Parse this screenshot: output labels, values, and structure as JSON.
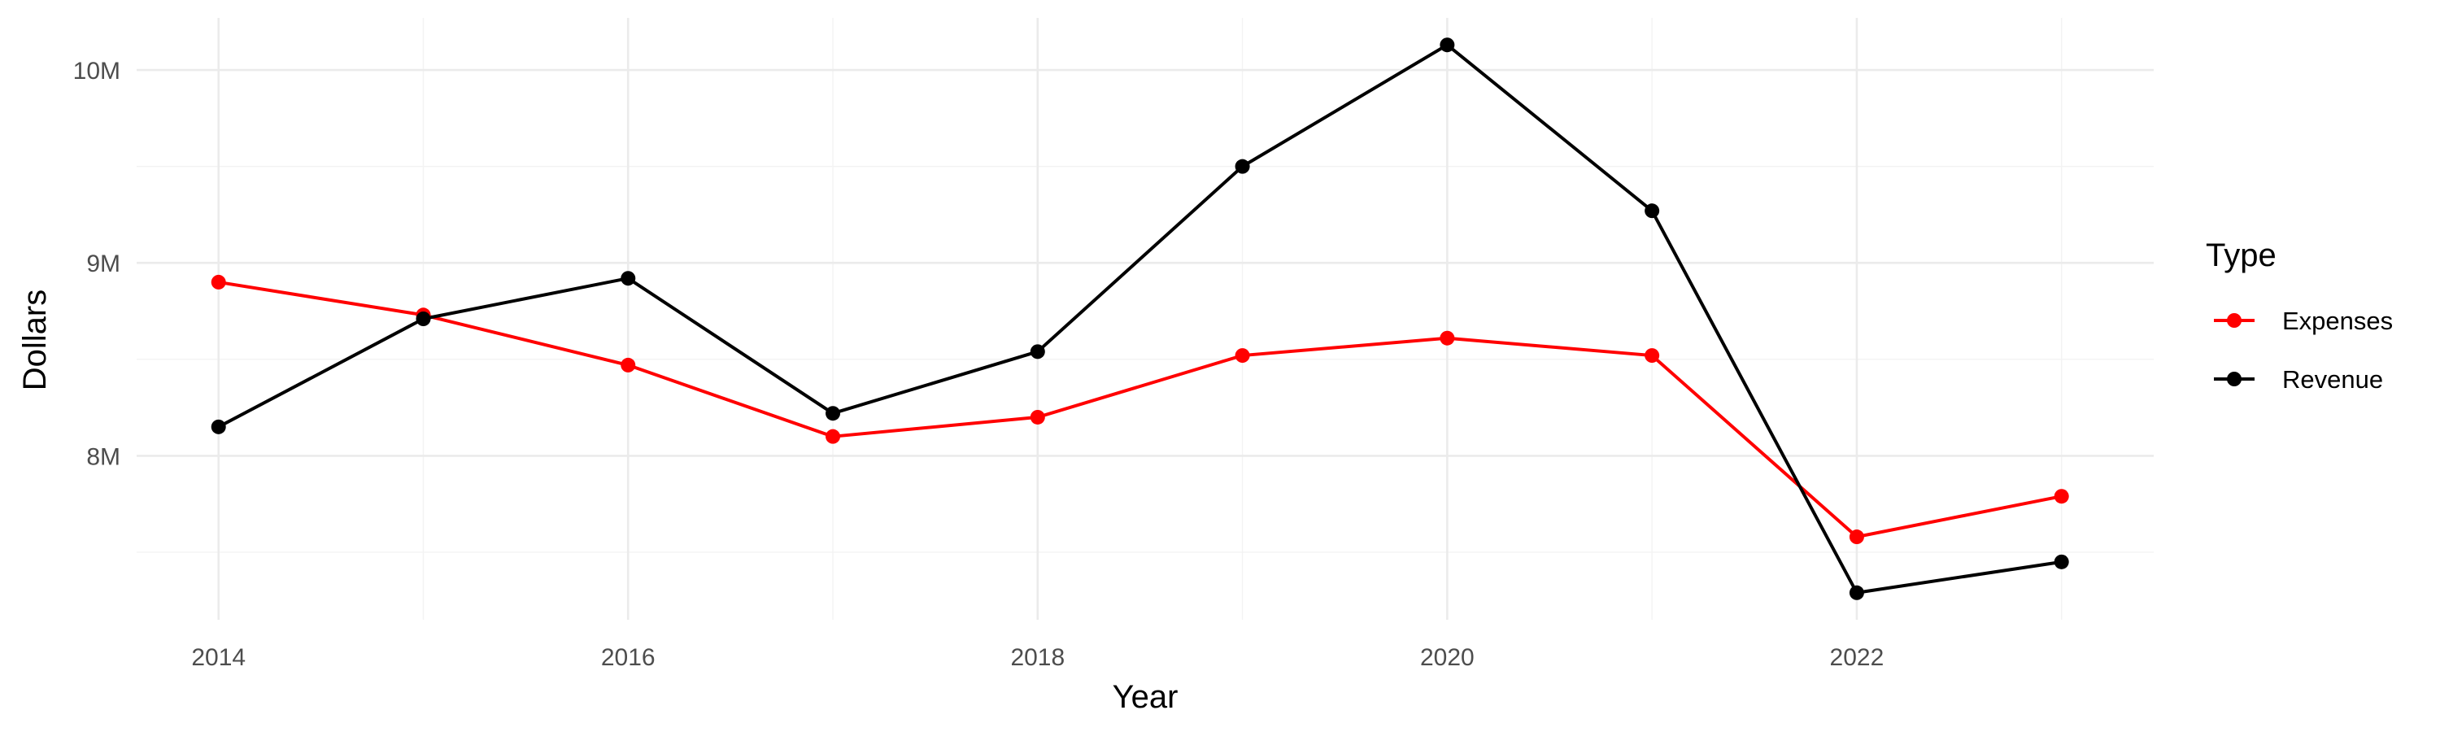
{
  "chart_data": {
    "type": "line",
    "xlabel": "Year",
    "ylabel": "Dollars",
    "x": [
      2014,
      2015,
      2016,
      2017,
      2018,
      2019,
      2020,
      2021,
      2022,
      2023
    ],
    "x_ticks": [
      2014,
      2016,
      2018,
      2020,
      2022
    ],
    "x_tick_labels": [
      "2014",
      "2016",
      "2018",
      "2020",
      "2022"
    ],
    "xlim": [
      2013.6,
      2023.45
    ],
    "y_ticks": [
      8000000,
      9000000,
      10000000
    ],
    "y_tick_labels": [
      "8M",
      "9M",
      "10M"
    ],
    "ylim": [
      7150000,
      10270000
    ],
    "grid": true,
    "legend": {
      "title": "Type",
      "position": "right"
    },
    "series": [
      {
        "name": "Expenses",
        "color": "#ff0000",
        "values": [
          8900000,
          8730000,
          8470000,
          8100000,
          8200000,
          8520000,
          8610000,
          8520000,
          7580000,
          7790000
        ]
      },
      {
        "name": "Revenue",
        "color": "#000000",
        "values": [
          8150000,
          8710000,
          8920000,
          8220000,
          8540000,
          9500000,
          10130000,
          9270000,
          7290000,
          7450000
        ]
      }
    ]
  }
}
